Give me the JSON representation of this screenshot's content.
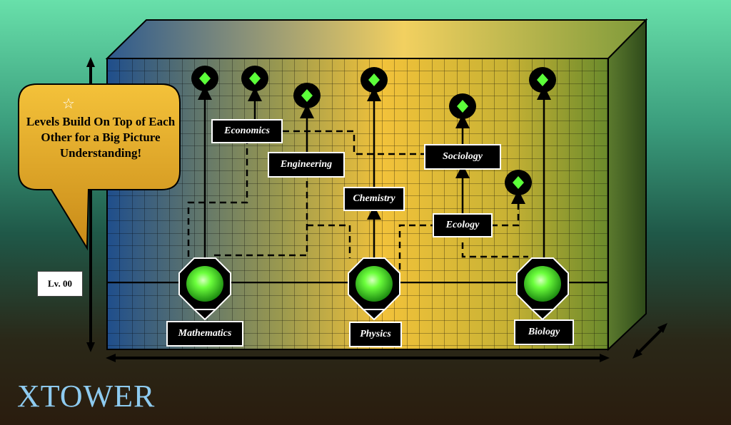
{
  "callout": {
    "text": "Levels Build On Top of Each Other for a Big Picture Understanding!",
    "icon": "star-icon"
  },
  "level_badge": "Lv. 00",
  "brand": "XTOWER",
  "foundations": [
    {
      "label": "Mathematics"
    },
    {
      "label": "Physics"
    },
    {
      "label": "Biology"
    }
  ],
  "fields": [
    {
      "label": "Economics"
    },
    {
      "label": "Engineering"
    },
    {
      "label": "Chemistry"
    },
    {
      "label": "Sociology"
    },
    {
      "label": "Ecology"
    }
  ],
  "colors": {
    "background_top": "#68e0aa",
    "background_bottom": "#2a1c0e",
    "box_blue": "#1f4e8c",
    "box_gold": "#f2c23a",
    "node_green": "#5cff3a",
    "callout_gold": "#e0a826",
    "brand_text": "#8ecbf0"
  }
}
